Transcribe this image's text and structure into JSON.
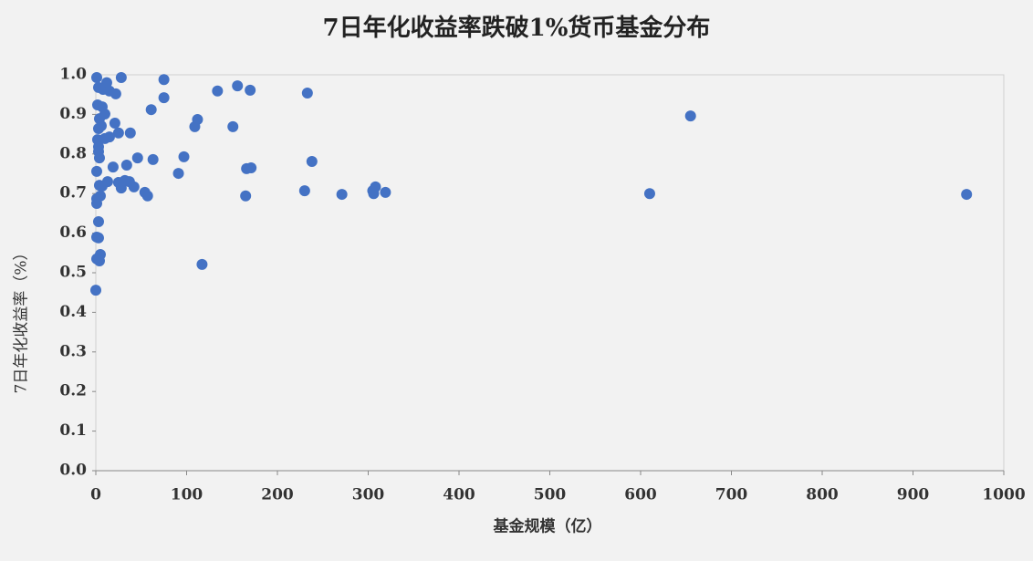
{
  "chart_data": {
    "type": "scatter",
    "title": "7日年化收益率跌破1%货币基金分布",
    "x_label": "基金规模（亿）",
    "y_label": "7日年化收益率（%）",
    "color": "#4472c4",
    "xlim": [
      0,
      1000
    ],
    "xticks": [
      0,
      100,
      200,
      300,
      400,
      500,
      600,
      700,
      800,
      900,
      1000
    ],
    "ylim": [
      0,
      1
    ],
    "yticks": [
      {
        "value": 0,
        "label": "0.0"
      },
      0.1,
      0.2,
      0.3,
      0.4,
      0.5,
      0.6,
      0.7,
      0.8,
      0.9,
      {
        "value": 1,
        "label": "1.0"
      }
    ],
    "x": [
      1,
      28,
      75,
      12,
      3,
      8,
      15,
      22,
      156,
      134,
      170,
      233,
      75,
      2,
      7,
      61,
      10,
      4,
      112,
      21,
      109,
      151,
      3,
      6,
      25,
      38,
      15,
      10,
      2,
      3,
      3,
      4,
      46,
      63,
      97,
      238,
      19,
      34,
      166,
      171,
      1,
      91,
      13,
      25,
      32,
      37,
      4,
      7,
      28,
      42,
      54,
      57,
      5,
      230,
      165,
      271,
      305,
      308,
      306,
      319,
      610,
      959,
      655,
      1,
      1,
      3,
      1,
      3,
      5,
      1,
      4,
      117,
      0
    ],
    "y": [
      0.993,
      0.993,
      0.988,
      0.98,
      0.968,
      0.963,
      0.959,
      0.952,
      0.972,
      0.959,
      0.961,
      0.954,
      0.942,
      0.924,
      0.919,
      0.912,
      0.901,
      0.889,
      0.887,
      0.878,
      0.869,
      0.869,
      0.864,
      0.871,
      0.853,
      0.853,
      0.843,
      0.839,
      0.836,
      0.818,
      0.806,
      0.79,
      0.79,
      0.786,
      0.793,
      0.781,
      0.767,
      0.772,
      0.763,
      0.765,
      0.756,
      0.751,
      0.73,
      0.728,
      0.733,
      0.73,
      0.721,
      0.719,
      0.714,
      0.717,
      0.703,
      0.694,
      0.694,
      0.707,
      0.694,
      0.698,
      0.707,
      0.717,
      0.7,
      0.703,
      0.7,
      0.698,
      0.896,
      0.687,
      0.675,
      0.629,
      0.59,
      0.588,
      0.546,
      0.535,
      0.53,
      0.521,
      0.456
    ]
  }
}
